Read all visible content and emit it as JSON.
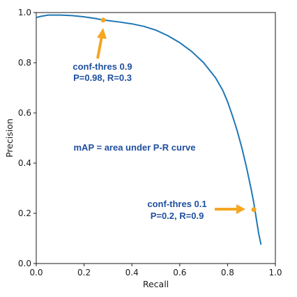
{
  "chart_data": {
    "type": "line",
    "xlabel": "Recall",
    "ylabel": "Precision",
    "xlim": [
      0.0,
      1.0
    ],
    "ylim": [
      0.0,
      1.0
    ],
    "grid": false,
    "x_ticks": [
      "0.0",
      "0.2",
      "0.4",
      "0.6",
      "0.8",
      "1.0"
    ],
    "y_ticks": [
      "0.0",
      "0.2",
      "0.4",
      "0.6",
      "0.8",
      "1.0"
    ],
    "series": [
      {
        "color": "#1f77b4",
        "x": [
          0.0,
          0.02,
          0.05,
          0.1,
          0.15,
          0.2,
          0.25,
          0.28,
          0.3,
          0.35,
          0.4,
          0.45,
          0.5,
          0.55,
          0.6,
          0.65,
          0.7,
          0.75,
          0.78,
          0.8,
          0.82,
          0.84,
          0.86,
          0.88,
          0.9,
          0.91,
          0.92,
          0.93,
          0.94
        ],
        "y": [
          0.98,
          0.985,
          0.99,
          0.99,
          0.988,
          0.983,
          0.976,
          0.97,
          0.968,
          0.962,
          0.955,
          0.945,
          0.93,
          0.908,
          0.88,
          0.845,
          0.8,
          0.74,
          0.69,
          0.645,
          0.59,
          0.53,
          0.46,
          0.38,
          0.29,
          0.24,
          0.18,
          0.12,
          0.075
        ]
      }
    ],
    "highlight_points": [
      {
        "x": 0.28,
        "y": 0.97,
        "color": "#f5a623"
      },
      {
        "x": 0.91,
        "y": 0.215,
        "color": "#f5a623"
      }
    ],
    "annotations": [
      {
        "lines": [
          "conf-thres 0.9",
          "P=0.98, R=0.3"
        ],
        "color": "#1f4fa0"
      },
      {
        "lines": [
          "mAP = area under P-R curve"
        ],
        "color": "#1f4fa0"
      },
      {
        "lines": [
          "conf-thres 0.1",
          "P=0.2, R=0.9"
        ],
        "color": "#1f4fa0"
      }
    ],
    "arrow_color": "#f5a623"
  }
}
